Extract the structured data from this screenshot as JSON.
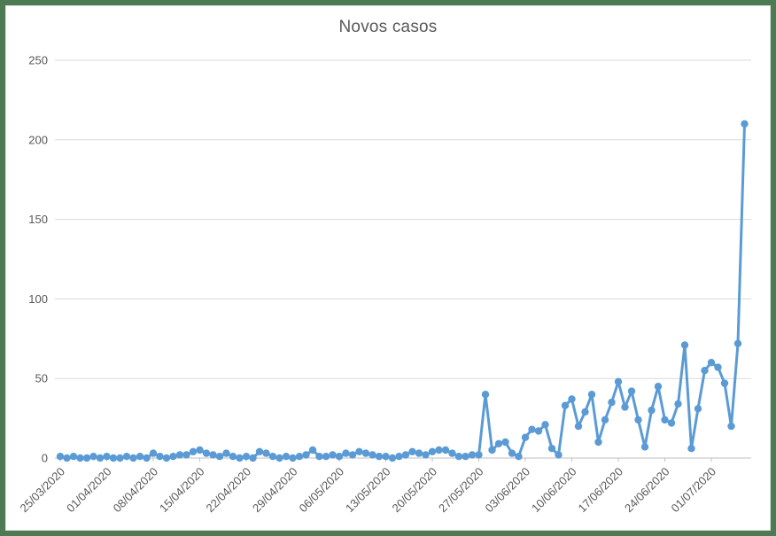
{
  "window": {
    "border_color": "#4d7a52",
    "background_color": "#ffffff"
  },
  "chart": {
    "title": "Novos casos",
    "title_color": "#595959"
  },
  "chart_data": {
    "type": "line",
    "title": "Novos casos",
    "legend": "none",
    "grid": "horizontal",
    "marker": "circle",
    "line_color": "#5b9bd5",
    "gridline_color": "#d9d9d9",
    "axis_line_color": "#bfbfbf",
    "tick_label_color": "#595959",
    "ylim": [
      0,
      250
    ],
    "y_ticks": [
      0,
      50,
      100,
      150,
      200,
      250
    ],
    "x_start": "25/03/2020",
    "x_end": "06/07/2020",
    "x_frequency": "daily",
    "x_tick_interval_days": 7,
    "x_tick_labels": [
      "25/03/2020",
      "01/04/2020",
      "08/04/2020",
      "15/04/2020",
      "22/04/2020",
      "29/04/2020",
      "06/05/2020",
      "13/05/2020",
      "20/05/2020",
      "27/05/2020",
      "03/06/2020",
      "10/06/2020",
      "17/06/2020",
      "24/06/2020",
      "01/07/2020"
    ],
    "values": [
      1,
      0,
      1,
      0,
      0,
      1,
      0,
      1,
      0,
      0,
      1,
      0,
      1,
      0,
      3,
      1,
      0,
      1,
      2,
      2,
      4,
      5,
      3,
      2,
      1,
      3,
      1,
      0,
      1,
      0,
      4,
      3,
      1,
      0,
      1,
      0,
      1,
      2,
      5,
      1,
      1,
      2,
      1,
      3,
      2,
      4,
      3,
      2,
      1,
      1,
      0,
      1,
      2,
      4,
      3,
      2,
      4,
      5,
      5,
      3,
      1,
      1,
      2,
      2,
      40,
      5,
      9,
      10,
      3,
      1,
      13,
      18,
      17,
      21,
      6,
      2,
      33,
      37,
      20,
      29,
      40,
      10,
      24,
      35,
      48,
      32,
      42,
      24,
      7,
      30,
      45,
      24,
      22,
      34,
      71,
      6,
      31,
      55,
      60,
      57,
      47,
      20,
      72,
      210
    ]
  }
}
